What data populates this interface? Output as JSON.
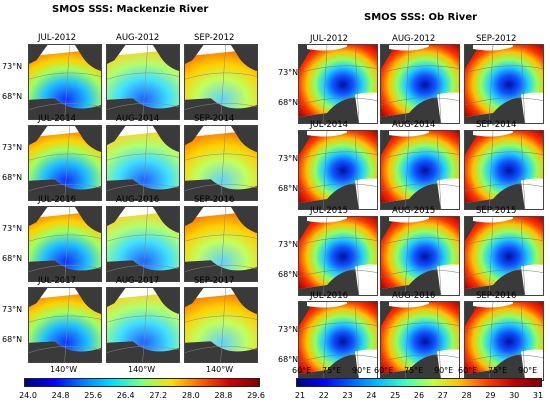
{
  "left": {
    "title": "SMOS SSS: Mackenzie River",
    "rows": [
      [
        "JUL-2012",
        "AUG-2012",
        "SEP-2012"
      ],
      [
        "JUL-2014",
        "AUG-2014",
        "SEP-2014"
      ],
      [
        "JUL-2016",
        "AUG-2016",
        "SEP-2016"
      ],
      [
        "JUL-2017",
        "AUG-2017",
        "SEP-2017"
      ]
    ],
    "lat_labels": [
      "73°N",
      "68°N"
    ],
    "lon_label": "140°W",
    "colorbar": {
      "ticks": [
        "24.0",
        "24.8",
        "25.6",
        "26.4",
        "27.2",
        "28.0",
        "28.8",
        "29.6"
      ],
      "colors": [
        "#00007f",
        "#0000ff",
        "#0080ff",
        "#00e0ff",
        "#7fff7f",
        "#ffe000",
        "#ff6000",
        "#d00000",
        "#800000"
      ]
    }
  },
  "right": {
    "title": "SMOS SSS: Ob River",
    "rows": [
      [
        "JUL-2012",
        "AUG-2012",
        "SEP-2012"
      ],
      [
        "JUL-2014",
        "AUG-2014",
        "SEP-2014"
      ],
      [
        "JUL-2015",
        "AUG-2015",
        "SEP-2015"
      ],
      [
        "JUL-2016",
        "AUG-2016",
        "SEP-2016"
      ]
    ],
    "lat_labels": [
      "73°N",
      "68°N"
    ],
    "lon_labels": [
      "60°E",
      "75°E",
      "90°E"
    ],
    "colorbar": {
      "ticks": [
        "21",
        "22",
        "23",
        "24",
        "25",
        "26",
        "27",
        "28",
        "29",
        "30",
        "31"
      ],
      "colors": [
        "#000080",
        "#0000ff",
        "#0060ff",
        "#00c0ff",
        "#40ffc0",
        "#c0ff40",
        "#ffc000",
        "#ff4000",
        "#c00000",
        "#800000"
      ]
    }
  }
}
